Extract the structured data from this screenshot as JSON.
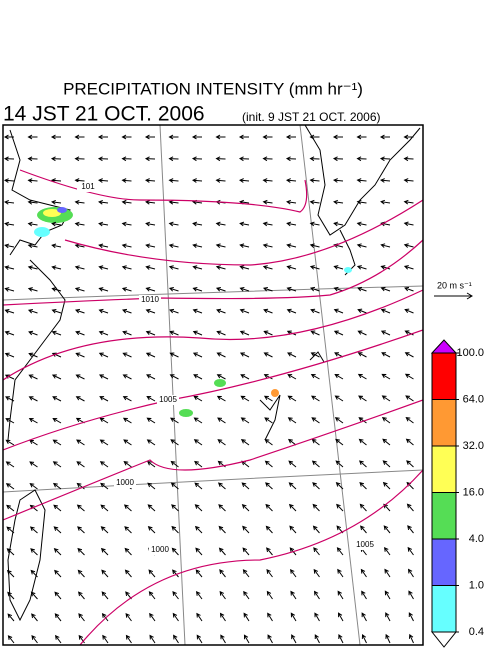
{
  "header": {
    "title": "PRECIPITATION INTENSITY (mm hr⁻¹)",
    "valid_time": "14 JST 21 OCT. 2006",
    "init_time": "(init. 9 JST 21 OCT. 2006)"
  },
  "wind_scale": {
    "label": "20 m s⁻¹"
  },
  "isobar_labels": [
    "101",
    "1010",
    "1005",
    "1000",
    "1000",
    "1005"
  ],
  "colorbar": {
    "ticks": [
      {
        "value": 100,
        "label": "100.0"
      },
      {
        "value": 64,
        "label": "64.0"
      },
      {
        "value": 32,
        "label": "32.0"
      },
      {
        "value": 16,
        "label": "16.0"
      },
      {
        "value": 4,
        "label": "4.0"
      },
      {
        "value": 1,
        "label": "1.0"
      },
      {
        "value": 0.4,
        "label": "0.4"
      }
    ],
    "colors": [
      "#ff0000",
      "#ff9933",
      "#ffff55",
      "#55dd55",
      "#6666ff",
      "#66ffff"
    ],
    "over_color": "#cc00ff",
    "under_color": "#ffffff"
  }
}
